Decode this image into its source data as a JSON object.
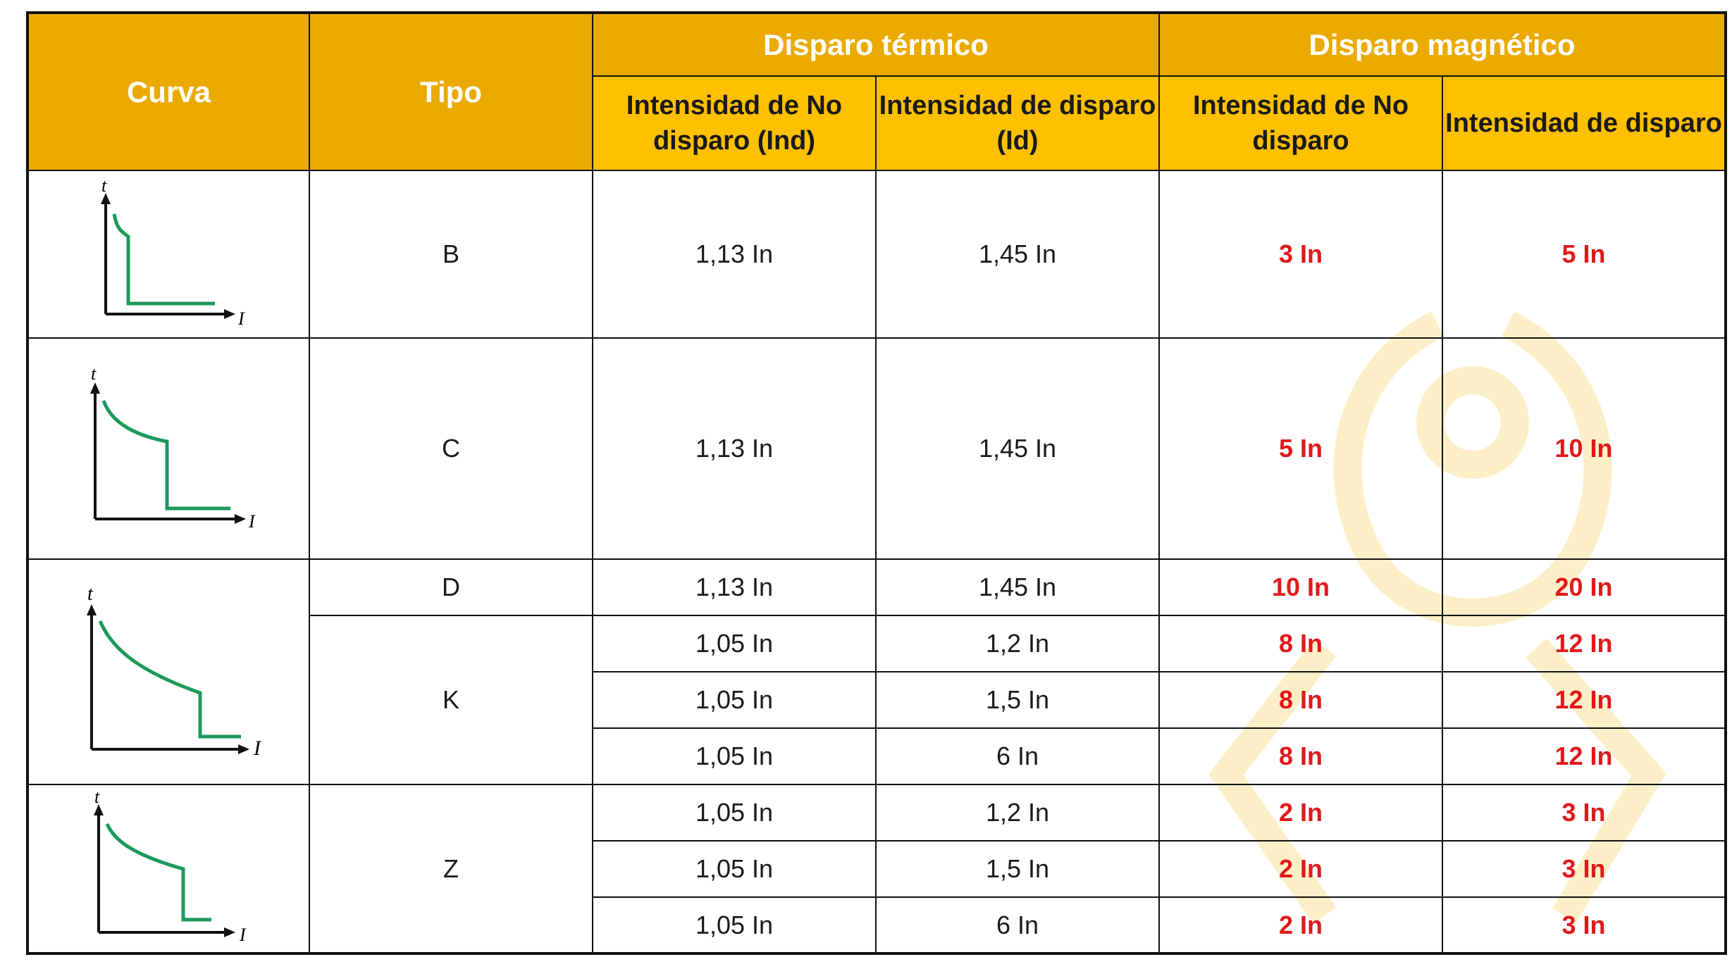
{
  "header": {
    "curva": "Curva",
    "tipo": "Tipo",
    "disparo_termico": "Disparo térmico",
    "disparo_magnetico": "Disparo magnético",
    "termico_no_disparo": "Intensidad de No disparo (Ind)",
    "termico_disparo": "Intensidad de disparo (Id)",
    "magnetico_no_disparo": "Intensidad de No disparo",
    "magnetico_disparo": "Intensidad de disparo"
  },
  "axis": {
    "t": "t",
    "i": "I"
  },
  "colors": {
    "header_dark": "#ebaa00",
    "header_light": "#ffc000",
    "curve": "#1a9a5a",
    "highlight": "#e0191a"
  },
  "rows": [
    {
      "tipo": "B",
      "ind": "1,13 In",
      "id": "1,45 In",
      "mag_no": "3 In",
      "mag_si": "5 In"
    },
    {
      "tipo": "C",
      "ind": "1,13 In",
      "id": "1,45 In",
      "mag_no": "5 In",
      "mag_si": "10 In"
    },
    {
      "tipo": "D",
      "ind": "1,13 In",
      "id": "1,45 In",
      "mag_no": "10 In",
      "mag_si": "20 In"
    },
    {
      "tipo": "K",
      "ind": "1,05 In",
      "id": "1,2 In",
      "mag_no": "8 In",
      "mag_si": "12 In"
    },
    {
      "tipo": "",
      "ind": "1,05 In",
      "id": "1,5 In",
      "mag_no": "8 In",
      "mag_si": "12 In"
    },
    {
      "tipo": "",
      "ind": "1,05 In",
      "id": "6 In",
      "mag_no": "8 In",
      "mag_si": "12 In"
    },
    {
      "tipo": "Z",
      "ind": "1,05 In",
      "id": "1,2 In",
      "mag_no": "2 In",
      "mag_si": "3 In"
    },
    {
      "tipo": "",
      "ind": "1,05 In",
      "id": "1,5 In",
      "mag_no": "2 In",
      "mag_si": "3 In"
    },
    {
      "tipo": "",
      "ind": "1,05 In",
      "id": "6 In",
      "mag_no": "2 In",
      "mag_si": "3 In"
    }
  ]
}
